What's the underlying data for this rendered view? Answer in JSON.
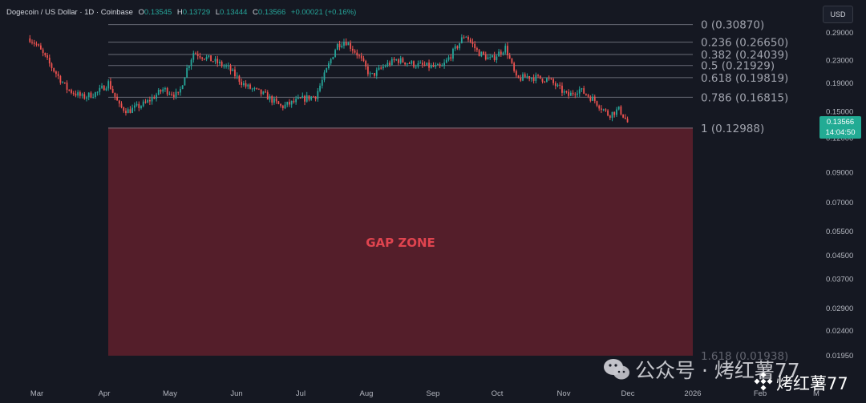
{
  "header": {
    "symbol": "Dogecoin / US Dollar · 1D · Coinbase",
    "o_label": "O",
    "o_value": "0.13545",
    "h_label": "H",
    "h_value": "0.13729",
    "l_label": "L",
    "l_value": "0.13444",
    "c_label": "C",
    "c_value": "0.13566",
    "change": "+0.00021 (+0.16%)"
  },
  "currency_button": "USD",
  "price_tag": {
    "price": "0.13566",
    "countdown": "14:04:50"
  },
  "zone_label": "GAP ZONE",
  "watermark": {
    "text": "公众号 · 烤红薯77",
    "badge": "烤红薯77"
  },
  "colors": {
    "background": "#151822",
    "up": "#26a69a",
    "down": "#ef5350",
    "fib_line": "#787b86",
    "zone_fill": "#5a1f2b",
    "zone_text": "#e0444f",
    "axis_text": "#b2b5be"
  },
  "chart_data": {
    "type": "candlestick",
    "title": "Dogecoin / US Dollar",
    "scale": "log",
    "x_ticks": [
      "Mar",
      "Apr",
      "May",
      "Jun",
      "Jul",
      "Aug",
      "Sep",
      "Oct",
      "Nov",
      "Dec",
      "2026",
      "Feb",
      "M"
    ],
    "y_ticks": [
      "0.29000",
      "0.23000",
      "0.19000",
      "0.15000",
      "0.12000",
      "0.09000",
      "0.07000",
      "0.05500",
      "0.04500",
      "0.03700",
      "0.02900",
      "0.02400",
      "0.01950"
    ],
    "ylim": [
      0.0185,
      0.33
    ],
    "fibonacci": [
      {
        "level": "0",
        "price": 0.3087
      },
      {
        "level": "0.236",
        "price": 0.2665
      },
      {
        "level": "0.382",
        "price": 0.24039
      },
      {
        "level": "0.5",
        "price": 0.21929
      },
      {
        "level": "0.618",
        "price": 0.19819
      },
      {
        "level": "0.786",
        "price": 0.16815
      },
      {
        "level": "1",
        "price": 0.12988
      },
      {
        "level": "1.618",
        "price": 0.01938
      }
    ],
    "gap_zone": {
      "from": 0.12988,
      "to": 0.01938,
      "start": "Apr",
      "end": "2026"
    },
    "close_path": [
      {
        "date": "Feb 25",
        "price": 0.275
      },
      {
        "date": "Mar 1",
        "price": 0.26
      },
      {
        "date": "Mar 8",
        "price": 0.215
      },
      {
        "date": "Mar 15",
        "price": 0.18
      },
      {
        "date": "Mar 22",
        "price": 0.168
      },
      {
        "date": "Mar 29",
        "price": 0.175
      },
      {
        "date": "Apr 3",
        "price": 0.19
      },
      {
        "date": "Apr 8",
        "price": 0.155
      },
      {
        "date": "Apr 12",
        "price": 0.15
      },
      {
        "date": "Apr 20",
        "price": 0.16
      },
      {
        "date": "Apr 28",
        "price": 0.18
      },
      {
        "date": "May 5",
        "price": 0.17
      },
      {
        "date": "May 8",
        "price": 0.205
      },
      {
        "date": "May 12",
        "price": 0.245
      },
      {
        "date": "May 20",
        "price": 0.23
      },
      {
        "date": "May 28",
        "price": 0.215
      },
      {
        "date": "Jun 5",
        "price": 0.185
      },
      {
        "date": "Jun 15",
        "price": 0.17
      },
      {
        "date": "Jun 22",
        "price": 0.155
      },
      {
        "date": "Jul 1",
        "price": 0.165
      },
      {
        "date": "Jul 8",
        "price": 0.17
      },
      {
        "date": "Jul 12",
        "price": 0.2
      },
      {
        "date": "Jul 18",
        "price": 0.26
      },
      {
        "date": "Jul 22",
        "price": 0.27
      },
      {
        "date": "Jul 28",
        "price": 0.24
      },
      {
        "date": "Aug 3",
        "price": 0.2
      },
      {
        "date": "Aug 10",
        "price": 0.22
      },
      {
        "date": "Aug 15",
        "price": 0.23
      },
      {
        "date": "Aug 25",
        "price": 0.22
      },
      {
        "date": "Sep 5",
        "price": 0.215
      },
      {
        "date": "Sep 12",
        "price": 0.255
      },
      {
        "date": "Sep 16",
        "price": 0.285
      },
      {
        "date": "Sep 22",
        "price": 0.245
      },
      {
        "date": "Sep 28",
        "price": 0.23
      },
      {
        "date": "Oct 5",
        "price": 0.255
      },
      {
        "date": "Oct 10",
        "price": 0.195
      },
      {
        "date": "Oct 15",
        "price": 0.2
      },
      {
        "date": "Oct 25",
        "price": 0.195
      },
      {
        "date": "Nov 3",
        "price": 0.17
      },
      {
        "date": "Nov 8",
        "price": 0.18
      },
      {
        "date": "Nov 15",
        "price": 0.165
      },
      {
        "date": "Nov 22",
        "price": 0.145
      },
      {
        "date": "Nov 27",
        "price": 0.152
      },
      {
        "date": "Dec 1",
        "price": 0.13566
      }
    ]
  }
}
